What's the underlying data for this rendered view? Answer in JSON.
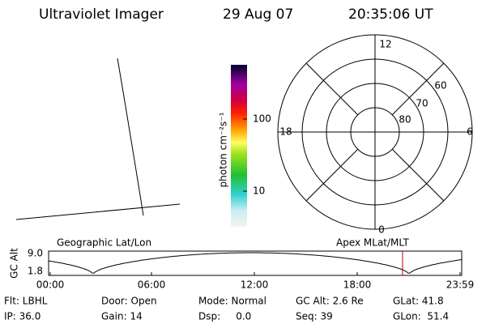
{
  "header": {
    "instrument": "Ultraviolet Imager",
    "date": "29 Aug 07",
    "time": "20:35:06 UT"
  },
  "colorbar": {
    "label": "photon cm⁻²s⁻¹",
    "ticks": [
      "100",
      "10"
    ]
  },
  "polar": {
    "hour_labels": [
      "12",
      "6",
      "0",
      "18"
    ],
    "lat_labels": [
      "60",
      "70",
      "80"
    ]
  },
  "orbit": {
    "title_left": "Geographic Lat/Lon",
    "title_right": "Apex MLat/MLT",
    "y_label": "GC Alt",
    "y_ticks": [
      "9.0",
      "1.8"
    ],
    "x_ticks": [
      "00:00",
      "06:00",
      "12:00",
      "18:00",
      "23:59"
    ]
  },
  "status": {
    "rows": [
      [
        "Flt: LBHL",
        "Door: Open",
        "Mode: Normal",
        "GC Alt: 2.6 Re",
        "GLat: 41.8"
      ],
      [
        "IP: 36.0",
        "Gain: 14",
        "Dsp:     0.0",
        "Seq: 39",
        "GLon:  51.4"
      ]
    ]
  }
}
